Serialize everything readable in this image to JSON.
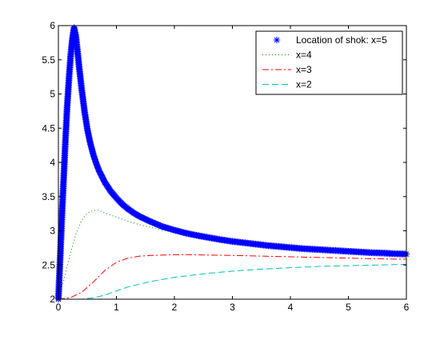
{
  "chart_data": {
    "type": "line",
    "title": "",
    "xlabel": "",
    "ylabel": "",
    "xlim": [
      0,
      6
    ],
    "ylim": [
      2,
      6
    ],
    "xticks": [
      0,
      1,
      2,
      3,
      4,
      5,
      6
    ],
    "yticks": [
      2,
      2.5,
      3,
      3.5,
      4,
      4.5,
      5,
      5.5,
      6
    ],
    "grid": false,
    "legend_position": "top-right",
    "series": [
      {
        "name": "Location of shok: x=5",
        "color": "#0000ff",
        "style": "asterisk-marker",
        "x": [
          0,
          0.03,
          0.06,
          0.09,
          0.12,
          0.15,
          0.18,
          0.21,
          0.24,
          0.27,
          0.3,
          0.33,
          0.36,
          0.4,
          0.45,
          0.5,
          0.55,
          0.6,
          0.65,
          0.7,
          0.8,
          0.9,
          1.0,
          1.1,
          1.2,
          1.3,
          1.4,
          1.5,
          1.6,
          1.8,
          2.0,
          2.2,
          2.4,
          2.6,
          2.8,
          3.0,
          3.2,
          3.4,
          3.6,
          3.8,
          4.0,
          4.2,
          4.4,
          4.6,
          4.8,
          5.0,
          5.2,
          5.4,
          5.6,
          5.8,
          6.0
        ],
        "y": [
          2.0,
          2.6,
          3.2,
          3.75,
          4.3,
          4.8,
          5.2,
          5.55,
          5.8,
          5.97,
          5.85,
          5.62,
          5.38,
          5.08,
          4.75,
          4.48,
          4.28,
          4.12,
          3.99,
          3.88,
          3.71,
          3.58,
          3.48,
          3.39,
          3.32,
          3.26,
          3.21,
          3.17,
          3.13,
          3.06,
          3.01,
          2.965,
          2.93,
          2.9,
          2.87,
          2.845,
          2.825,
          2.805,
          2.785,
          2.77,
          2.755,
          2.74,
          2.73,
          2.72,
          2.71,
          2.7,
          2.69,
          2.68,
          2.675,
          2.665,
          2.66
        ]
      },
      {
        "name": "x=4",
        "color": "#007f00",
        "style": "dotted",
        "x": [
          0,
          0.1,
          0.2,
          0.3,
          0.4,
          0.5,
          0.6,
          0.7,
          0.8,
          0.9,
          1.0,
          1.2,
          1.4,
          1.6,
          1.8,
          2.0,
          2.3,
          2.6,
          3.0,
          3.5,
          4.0,
          4.5,
          5.0,
          5.5,
          6.0
        ],
        "y": [
          2.0,
          2.3,
          2.65,
          2.95,
          3.15,
          3.26,
          3.3,
          3.3,
          3.26,
          3.23,
          3.2,
          3.14,
          3.09,
          3.05,
          3.01,
          2.98,
          2.94,
          2.9,
          2.85,
          2.8,
          2.76,
          2.72,
          2.69,
          2.665,
          2.65
        ]
      },
      {
        "name": "x=3",
        "color": "#ff0000",
        "style": "dashdot",
        "x": [
          0,
          0.2,
          0.4,
          0.6,
          0.8,
          1.0,
          1.2,
          1.4,
          1.6,
          1.8,
          2.0,
          2.3,
          2.6,
          3.0,
          3.5,
          4.0,
          4.5,
          5.0,
          5.5,
          6.0
        ],
        "y": [
          2.0,
          2.02,
          2.1,
          2.25,
          2.42,
          2.54,
          2.6,
          2.63,
          2.64,
          2.645,
          2.65,
          2.65,
          2.645,
          2.64,
          2.63,
          2.62,
          2.61,
          2.6,
          2.59,
          2.585
        ]
      },
      {
        "name": "x=2",
        "color": "#00bfbf",
        "style": "dashed",
        "x": [
          0,
          0.2,
          0.4,
          0.6,
          0.8,
          1.0,
          1.2,
          1.4,
          1.6,
          1.8,
          2.0,
          2.3,
          2.6,
          3.0,
          3.5,
          4.0,
          4.5,
          5.0,
          5.5,
          6.0
        ],
        "y": [
          2.0,
          2.0,
          2.0,
          2.02,
          2.06,
          2.12,
          2.18,
          2.22,
          2.26,
          2.29,
          2.32,
          2.35,
          2.38,
          2.41,
          2.44,
          2.46,
          2.48,
          2.49,
          2.5,
          2.51
        ]
      }
    ]
  }
}
